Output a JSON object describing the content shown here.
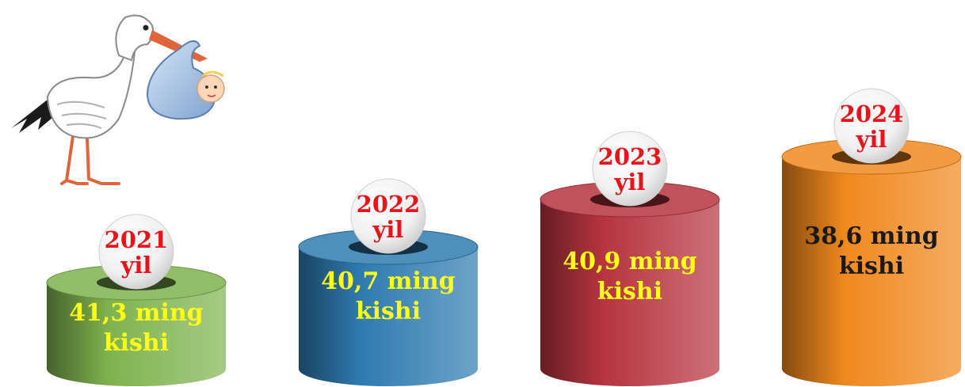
{
  "chart_data": {
    "type": "bar",
    "style": "3d-cylinder",
    "title": "",
    "xlabel": "",
    "ylabel": "",
    "categories": [
      "2021",
      "2022",
      "2023",
      "2024"
    ],
    "values": [
      41.3,
      40.7,
      40.9,
      38.6
    ],
    "unit": "ming kishi",
    "year_labels": [
      {
        "line1": "2021",
        "line2": "yil"
      },
      {
        "line1": "2022",
        "line2": "yil"
      },
      {
        "line1": "2023",
        "line2": "yil"
      },
      {
        "line1": "2024",
        "line2": "yil"
      }
    ],
    "value_labels": [
      {
        "line1": "41,3 ming",
        "line2": "kishi"
      },
      {
        "line1": "40,7  ming",
        "line2": "kishi"
      },
      {
        "line1": "40,9 ming",
        "line2": "kishi"
      },
      {
        "line1": "38,6 ming",
        "line2": "kishi"
      }
    ],
    "colors": [
      "#7fb34f",
      "#2f7bb0",
      "#b6343f",
      "#f0891e"
    ],
    "value_label_colors": [
      "#ffff1a",
      "#ffff1a",
      "#ffff1a",
      "#1a1a1a"
    ],
    "year_label_color": "#e8141b",
    "decoration": "stork-carrying-baby-icon"
  }
}
